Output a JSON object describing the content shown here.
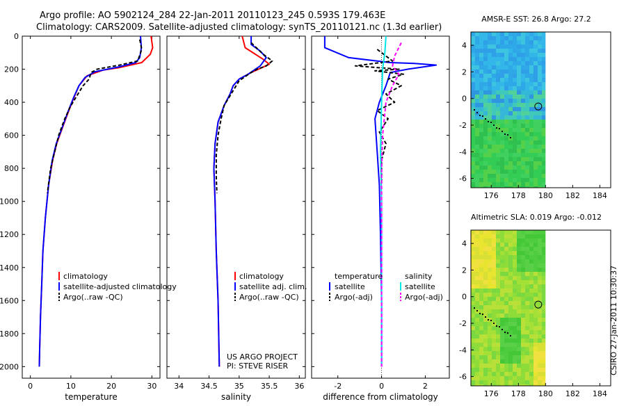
{
  "header": {
    "line1": "Argo profile: AO 5902124_284 22-Jan-2011 20110123_245 0.593S 179.463E",
    "line2": "Climatology: CARS2009. Satellite-adjusted climatology: synTS_20110121.nc (1.3d earlier)"
  },
  "colors": {
    "climatology": "#ff0000",
    "satellite": "#0000ff",
    "argo": "#000000",
    "salinity_sat": "#00e5e5",
    "salinity_argo": "#ff00ff"
  },
  "y_axis": {
    "ticks": [
      0,
      200,
      400,
      600,
      800,
      1000,
      1200,
      1400,
      1600,
      1800,
      2000
    ]
  },
  "chart_data": [
    {
      "type": "line",
      "name": "temperature",
      "xlabel": "temperature",
      "xlim": [
        -2,
        32
      ],
      "ylim": [
        0,
        2070
      ],
      "x_ticks": [
        "0",
        "10",
        "20",
        "30"
      ],
      "x_tick_values": [
        0,
        10,
        20,
        30
      ],
      "legend": [
        "climatology",
        "satellite-adjusted climatology",
        "Argo(..raw -QC)"
      ],
      "series": [
        {
          "name": "climatology",
          "color": "#ff0000",
          "style": "solid",
          "points": [
            [
              29.8,
              0
            ],
            [
              30.2,
              70
            ],
            [
              29.6,
              110
            ],
            [
              27.5,
              160
            ],
            [
              22,
              190
            ],
            [
              18,
              205
            ],
            [
              14,
              240
            ],
            [
              12,
              300
            ],
            [
              10.8,
              370
            ],
            [
              9.5,
              450
            ],
            [
              8,
              550
            ],
            [
              6.5,
              650
            ],
            [
              5.5,
              750
            ],
            [
              4.5,
              900
            ],
            [
              3.7,
              1100
            ],
            [
              3.1,
              1300
            ],
            [
              2.8,
              1500
            ],
            [
              2.5,
              1700
            ],
            [
              2.3,
              1900
            ],
            [
              2.2,
              2000
            ]
          ]
        },
        {
          "name": "satellite-adjusted climatology",
          "color": "#0000ff",
          "style": "solid",
          "points": [
            [
              27.2,
              0
            ],
            [
              27.4,
              70
            ],
            [
              27,
              130
            ],
            [
              26,
              160
            ],
            [
              22,
              185
            ],
            [
              16,
              215
            ],
            [
              13.5,
              250
            ],
            [
              12,
              300
            ],
            [
              10.7,
              370
            ],
            [
              9.4,
              450
            ],
            [
              7.9,
              550
            ],
            [
              6.4,
              650
            ],
            [
              5.4,
              750
            ],
            [
              4.5,
              900
            ],
            [
              3.7,
              1100
            ],
            [
              3.1,
              1300
            ],
            [
              2.8,
              1500
            ],
            [
              2.5,
              1700
            ],
            [
              2.3,
              1900
            ],
            [
              2.2,
              2000
            ]
          ]
        },
        {
          "name": "Argo(..raw -QC)",
          "color": "#000000",
          "style": "dashed",
          "points": [
            [
              27,
              20
            ],
            [
              27.5,
              80
            ],
            [
              26.5,
              150
            ],
            [
              22,
              175
            ],
            [
              16.5,
              200
            ],
            [
              15,
              220
            ],
            [
              14.5,
              260
            ],
            [
              13,
              300
            ],
            [
              11.5,
              360
            ],
            [
              9.8,
              430
            ],
            [
              8.5,
              500
            ],
            [
              7,
              600
            ],
            [
              6,
              700
            ],
            [
              5,
              800
            ],
            [
              4.2,
              950
            ]
          ]
        }
      ]
    },
    {
      "type": "line",
      "name": "salinity",
      "xlabel": "salinity",
      "xlim": [
        33.8,
        36.1
      ],
      "ylim": [
        0,
        2070
      ],
      "x_ticks": [
        "34",
        "34.5",
        "35",
        "35.5",
        "36"
      ],
      "x_tick_values": [
        34,
        34.5,
        35,
        35.5,
        36
      ],
      "legend": [
        "climatology",
        "satellite adj. clim.",
        "Argo(..raw -QC)"
      ],
      "annotation": [
        "US ARGO PROJECT",
        "PI: STEVE RISER"
      ],
      "series": [
        {
          "name": "climatology",
          "color": "#ff0000",
          "style": "solid",
          "points": [
            [
              35.05,
              0
            ],
            [
              35.1,
              70
            ],
            [
              35.4,
              140
            ],
            [
              35.5,
              170
            ],
            [
              35.2,
              220
            ],
            [
              35,
              260
            ],
            [
              34.9,
              300
            ],
            [
              34.85,
              350
            ],
            [
              34.75,
              420
            ],
            [
              34.65,
              520
            ],
            [
              34.6,
              650
            ],
            [
              34.58,
              800
            ],
            [
              34.6,
              1000
            ],
            [
              34.62,
              1300
            ],
            [
              34.65,
              1600
            ],
            [
              34.67,
              2000
            ]
          ]
        },
        {
          "name": "satellite adj. clim.",
          "color": "#0000ff",
          "style": "solid",
          "points": [
            [
              35.2,
              0
            ],
            [
              35.2,
              50
            ],
            [
              35.35,
              90
            ],
            [
              35.45,
              130
            ],
            [
              35.35,
              180
            ],
            [
              35.15,
              230
            ],
            [
              35,
              260
            ],
            [
              34.9,
              300
            ],
            [
              34.85,
              350
            ],
            [
              34.75,
              420
            ],
            [
              34.65,
              520
            ],
            [
              34.6,
              650
            ],
            [
              34.58,
              800
            ],
            [
              34.6,
              1000
            ],
            [
              34.62,
              1300
            ],
            [
              34.65,
              1600
            ],
            [
              34.67,
              2000
            ]
          ]
        },
        {
          "name": "Argo(..raw -QC)",
          "color": "#000000",
          "style": "dashed",
          "points": [
            [
              35.2,
              40
            ],
            [
              35.4,
              110
            ],
            [
              35.55,
              150
            ],
            [
              35.45,
              180
            ],
            [
              35.3,
              200
            ],
            [
              35.2,
              220
            ],
            [
              35,
              270
            ],
            [
              34.95,
              300
            ],
            [
              34.85,
              360
            ],
            [
              34.75,
              420
            ],
            [
              34.7,
              500
            ],
            [
              34.65,
              600
            ],
            [
              34.62,
              720
            ],
            [
              34.62,
              850
            ],
            [
              34.63,
              950
            ]
          ]
        }
      ]
    },
    {
      "type": "line",
      "name": "difference",
      "xlabel": "difference from climatology",
      "xlim": [
        -3.2,
        3.1
      ],
      "ylim": [
        0,
        2070
      ],
      "x_ticks": [
        "-2",
        "0",
        "2"
      ],
      "x_tick_values": [
        -2,
        0,
        2
      ],
      "legend_left": [
        "temperature",
        "satellite",
        "Argo(-adj)"
      ],
      "legend_right": [
        "salinity",
        "satellite",
        "Argo(-adj)"
      ],
      "series": [
        {
          "name": "temperature satellite",
          "color": "#0000ff",
          "style": "solid",
          "points": [
            [
              -2.6,
              0
            ],
            [
              -2.6,
              70
            ],
            [
              -1.5,
              130
            ],
            [
              0.4,
              160
            ],
            [
              1.5,
              165
            ],
            [
              2.5,
              175
            ],
            [
              1.2,
              200
            ],
            [
              0.4,
              220
            ],
            [
              0.2,
              300
            ],
            [
              -0.1,
              400
            ],
            [
              -0.3,
              500
            ],
            [
              -0.2,
              700
            ],
            [
              -0.1,
              900
            ],
            [
              -0.05,
              1200
            ],
            [
              0,
              1600
            ],
            [
              0,
              2000
            ]
          ]
        },
        {
          "name": "temperature Argo(-adj)",
          "color": "#000000",
          "style": "dashed",
          "points": [
            [
              -0.2,
              80
            ],
            [
              0.5,
              150
            ],
            [
              -1.2,
              180
            ],
            [
              0.8,
              200
            ],
            [
              -0.3,
              210
            ],
            [
              1,
              230
            ],
            [
              0.3,
              260
            ],
            [
              0.9,
              300
            ],
            [
              0.2,
              350
            ],
            [
              0.6,
              400
            ],
            [
              -0.2,
              450
            ],
            [
              0.3,
              500
            ],
            [
              -0.1,
              580
            ],
            [
              0.2,
              650
            ],
            [
              0,
              750
            ],
            [
              0,
              900
            ]
          ]
        },
        {
          "name": "salinity satellite",
          "color": "#00e5e5",
          "style": "solid",
          "points": [
            [
              0.2,
              0
            ],
            [
              0.15,
              100
            ],
            [
              0.05,
              200
            ],
            [
              0,
              400
            ],
            [
              -0.05,
              700
            ],
            [
              0,
              1000
            ],
            [
              0,
              2000
            ]
          ]
        },
        {
          "name": "salinity Argo(-adj)",
          "color": "#ff00ff",
          "style": "dashed",
          "points": [
            [
              0.9,
              40
            ],
            [
              0.6,
              120
            ],
            [
              0.5,
              180
            ],
            [
              0.8,
              230
            ],
            [
              0.5,
              300
            ],
            [
              0.2,
              400
            ],
            [
              0.05,
              600
            ],
            [
              0,
              800
            ],
            [
              0,
              2000
            ]
          ]
        }
      ]
    },
    {
      "type": "heatmap",
      "name": "AMSR-E SST map",
      "title": "AMSR-E SST: 26.8  Argo: 27.2",
      "xlim": [
        174.5,
        184.8
      ],
      "ylim": [
        -6.7,
        5
      ],
      "x_ticks": [
        "176",
        "178",
        "180",
        "182",
        "184"
      ],
      "x_tick_values": [
        176,
        178,
        180,
        182,
        184
      ],
      "y_ticks": [
        "4",
        "2",
        "0",
        "-2",
        "-4",
        "-6"
      ],
      "y_tick_values": [
        4,
        2,
        0,
        -2,
        -4,
        -6
      ],
      "data_extent_x": [
        174.5,
        180
      ],
      "float_position": [
        179.463,
        -0.593
      ]
    },
    {
      "type": "heatmap",
      "name": "Altimetric SLA map",
      "title": "Altimetric SLA: 0.019  Argo: -0.012",
      "xlim": [
        174.5,
        184.8
      ],
      "ylim": [
        -6.7,
        5
      ],
      "x_ticks": [
        "176",
        "178",
        "180",
        "182",
        "184"
      ],
      "x_tick_values": [
        176,
        178,
        180,
        182,
        184
      ],
      "y_ticks": [
        "4",
        "2",
        "0",
        "-2",
        "-4",
        "-6"
      ],
      "y_tick_values": [
        4,
        2,
        0,
        -2,
        -4,
        -6
      ],
      "data_extent_x": [
        174.5,
        180
      ],
      "float_position": [
        179.463,
        -0.593
      ]
    }
  ],
  "footer": {
    "stamp": "CSIRO 27-Jan-2011 10:30:37"
  }
}
